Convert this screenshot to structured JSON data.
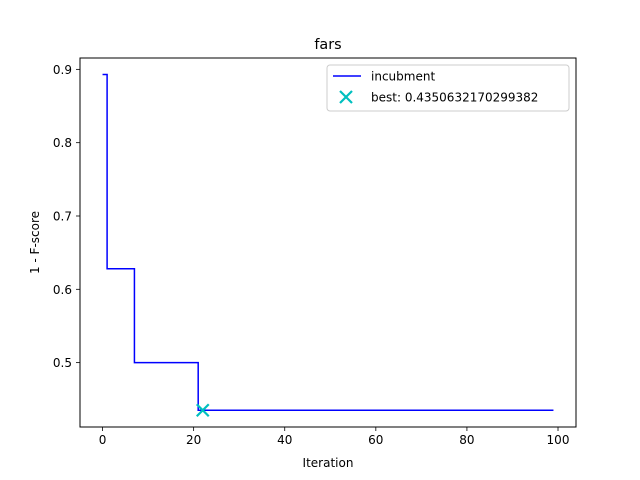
{
  "chart_data": {
    "type": "line",
    "title": "fars",
    "xlabel": "Iteration",
    "ylabel": "1 - F-score",
    "xlim": [
      -4.95,
      103.95
    ],
    "ylim": [
      0.4122,
      0.9155
    ],
    "xticks": [
      0,
      20,
      40,
      60,
      80,
      100
    ],
    "yticks": [
      0.5,
      0.6,
      0.7,
      0.8,
      0.9
    ],
    "xtick_labels": [
      "0",
      "20",
      "40",
      "60",
      "80",
      "100"
    ],
    "ytick_labels": [
      "0.5",
      "0.6",
      "0.7",
      "0.8",
      "0.9"
    ],
    "grid": false,
    "legend_position": "top-right",
    "series": [
      {
        "name": "incubment",
        "color": "#0000ff",
        "drawstyle": "steps-post",
        "x": [
          0,
          1,
          7,
          8,
          21,
          22,
          99
        ],
        "y": [
          0.893,
          0.628,
          0.5,
          0.5,
          0.4350632170299382,
          0.4350632170299382,
          0.4350632170299382
        ]
      }
    ],
    "markers": [
      {
        "name": "best: 0.4350632170299382",
        "color": "#00bfbf",
        "marker": "x",
        "x": 22,
        "y": 0.4350632170299382
      }
    ]
  }
}
